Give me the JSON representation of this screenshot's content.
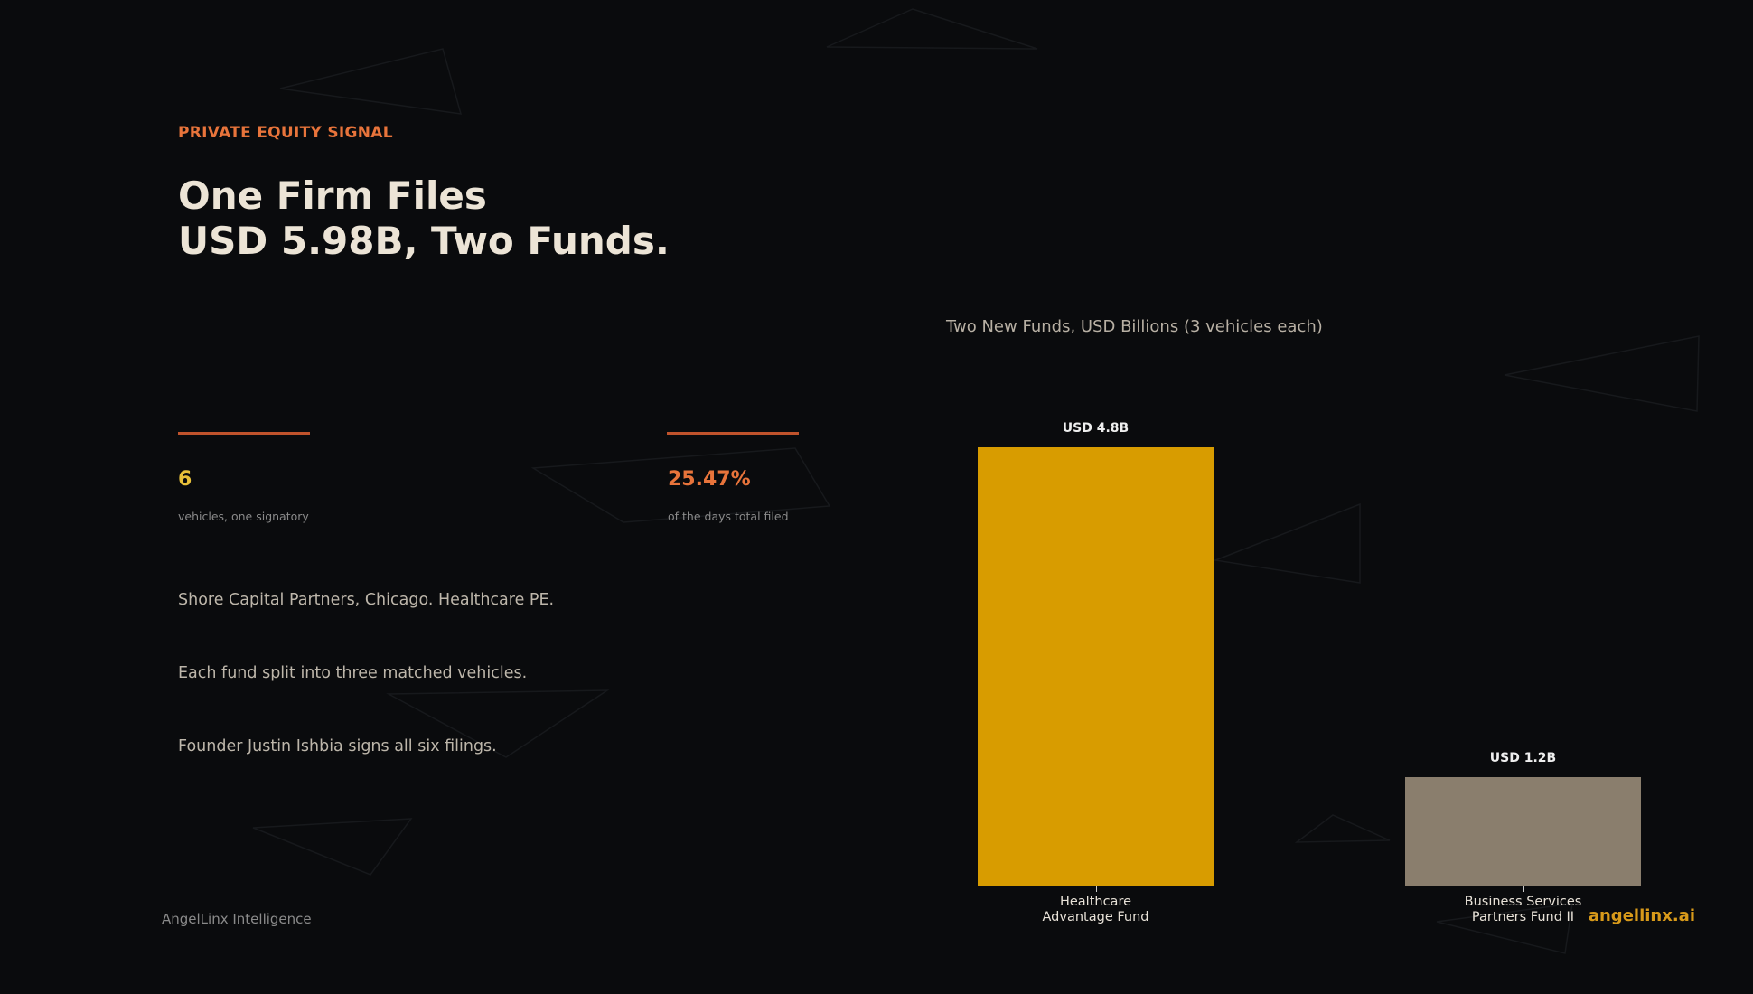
{
  "kicker": "PRIVATE EQUITY SIGNAL",
  "title_lines": [
    "One Firm Files",
    "USD 5.98B, Two Funds."
  ],
  "stats": [
    {
      "value": "6",
      "caption": "vehicles, one signatory"
    },
    {
      "value": "25.47%",
      "caption": "of the days total filed"
    }
  ],
  "notes": [
    "Shore Capital Partners, Chicago. Healthcare PE.",
    "Each fund split into three matched vehicles.",
    "Founder Justin Ishbia signs all six filings."
  ],
  "footer": {
    "left": "AngelLinx Intelligence",
    "right": "angellinx.ai"
  },
  "chart_data": {
    "type": "bar",
    "subtitle": "Two New Funds, USD Billions (3 vehicles each)",
    "categories": [
      "Healthcare Advantage Fund",
      "Business Services Partners Fund II"
    ],
    "values": [
      4.8,
      1.2
    ],
    "value_labels": [
      "USD 4.8B",
      "USD 1.2B"
    ],
    "colors": [
      "#d89c00",
      "#8a7e6d"
    ]
  }
}
